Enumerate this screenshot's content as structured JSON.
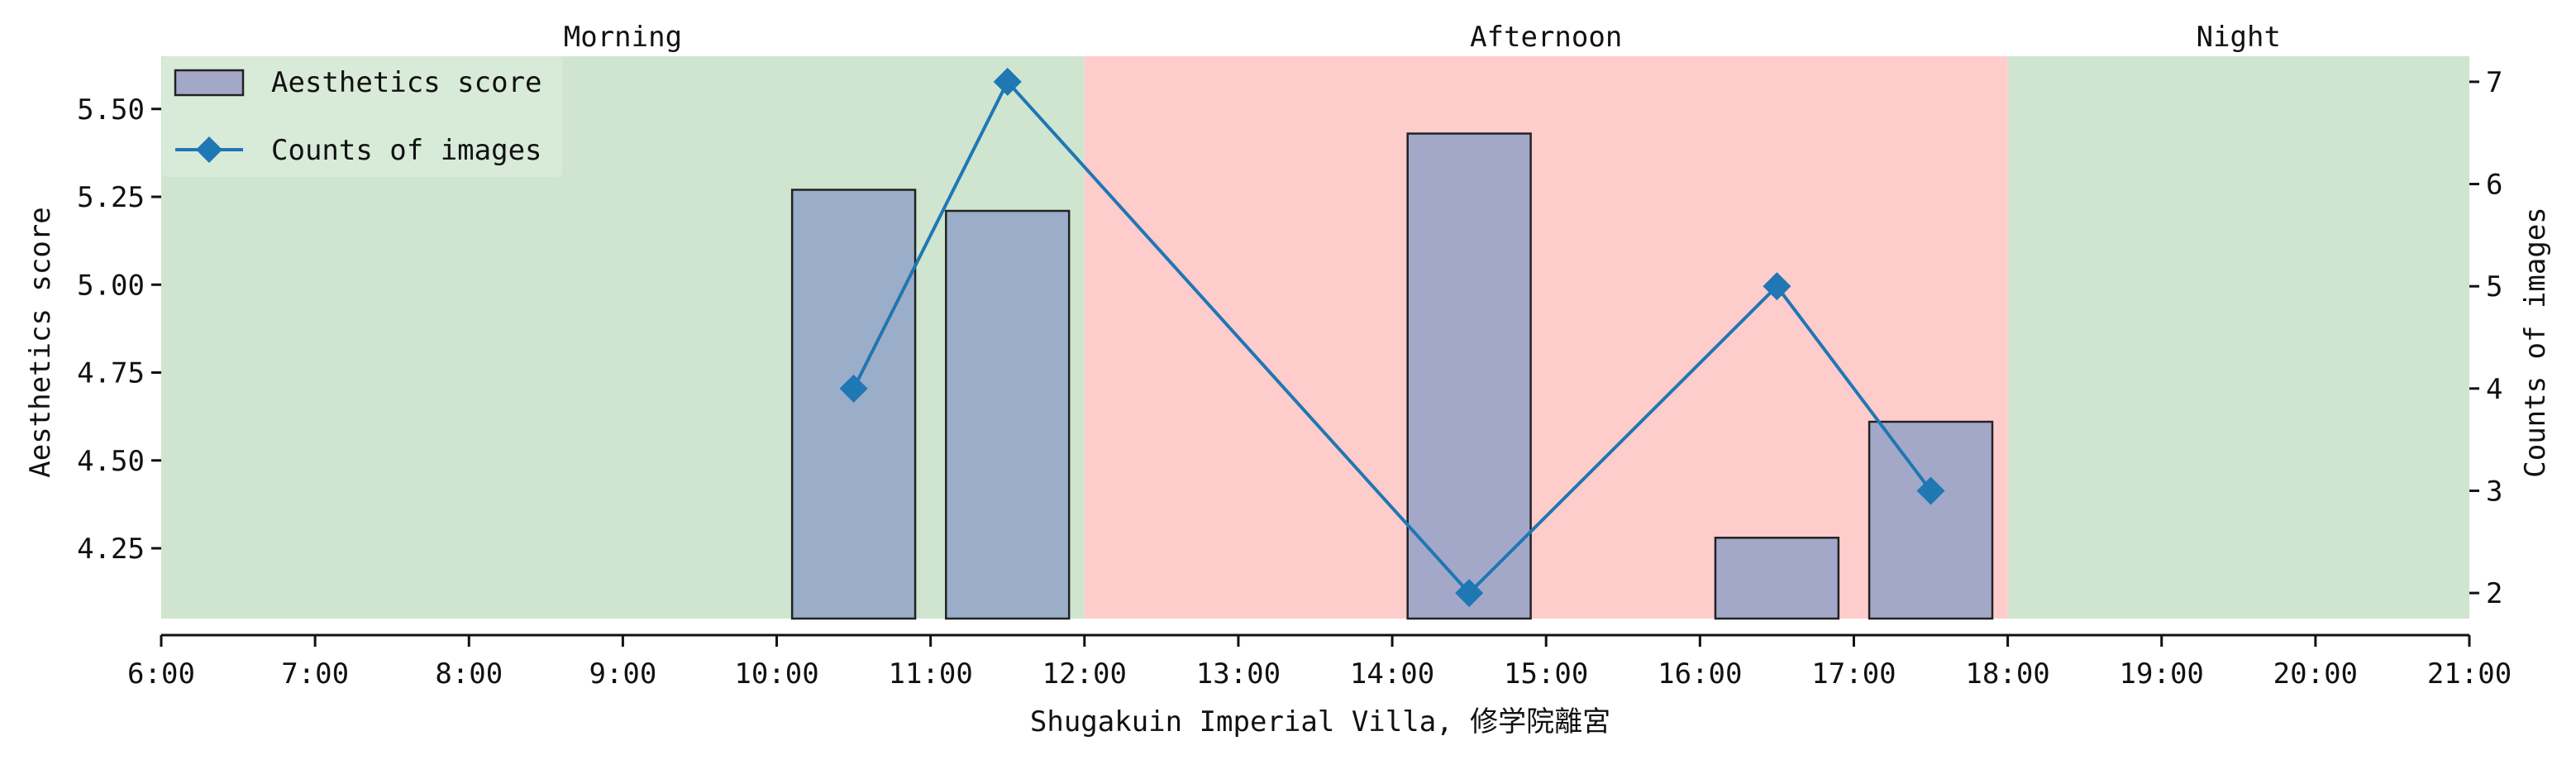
{
  "chart_data": {
    "type": "bar",
    "xlabel": "Shugakuin Imperial Villa, 修学院離宮",
    "ylabel_left": "Aesthetics score",
    "ylabel_right": "Counts of images",
    "x_ticks": [
      "6:00",
      "7:00",
      "8:00",
      "9:00",
      "10:00",
      "11:00",
      "12:00",
      "13:00",
      "14:00",
      "15:00",
      "16:00",
      "17:00",
      "18:00",
      "19:00",
      "20:00",
      "21:00"
    ],
    "xlim": [
      6,
      21
    ],
    "y_left_ticks": [
      "4.25",
      "4.50",
      "4.75",
      "5.00",
      "5.25",
      "5.50"
    ],
    "y_left_lim": [
      4.05,
      5.65
    ],
    "y_right_ticks": [
      "2",
      "3",
      "4",
      "5",
      "6",
      "7"
    ],
    "y_right_lim": [
      1.75,
      7.25
    ],
    "periods": [
      {
        "label": "Morning",
        "start": 6,
        "end": 12,
        "color": "#cfe5cf"
      },
      {
        "label": "Afternoon",
        "start": 12,
        "end": 18,
        "color": "#ffcccc"
      },
      {
        "label": "Night",
        "start": 18,
        "end": 21,
        "color": "#cfe5cf"
      }
    ],
    "series": [
      {
        "name": "Aesthetics score",
        "type": "bar",
        "axis": "left",
        "x": [
          10.5,
          11.5,
          14.5,
          16.5,
          17.5
        ],
        "values": [
          5.27,
          5.21,
          5.43,
          4.28,
          4.61
        ],
        "colors": [
          "#9aaec9",
          "#9aaec9",
          "#a3a8c8",
          "#a3a8c8",
          "#a3a8c8"
        ]
      },
      {
        "name": "Counts of images",
        "type": "line",
        "axis": "right",
        "x": [
          10.5,
          11.5,
          14.5,
          16.5,
          17.5
        ],
        "values": [
          4,
          7,
          2,
          5,
          3
        ],
        "color": "#1f77b4"
      }
    ],
    "legend_position": "top-left",
    "legend_swatch_color": "#a3a8c8",
    "grid": false
  }
}
